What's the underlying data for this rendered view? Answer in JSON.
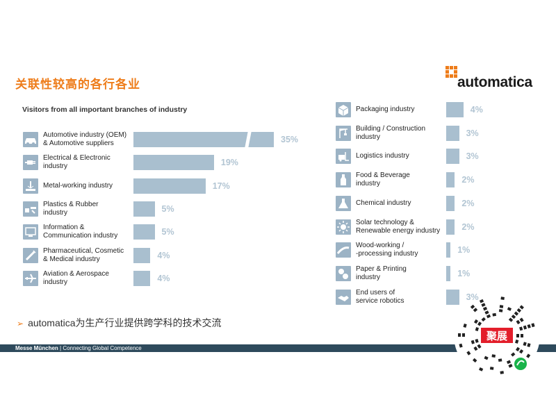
{
  "title": "关联性较高的各行各业",
  "logo_text": "automatica",
  "chart_data": {
    "type": "bar",
    "subtitle": "Visitors from all important branches of industry",
    "unit": "%",
    "left_panel": [
      {
        "label": "Automotive industry (OEM)\n& Automotive suppliers",
        "value": 35,
        "display": "35%",
        "icon": "car-icon"
      },
      {
        "label": "Electrical & Electronic\nindustry",
        "value": 19,
        "display": "19%",
        "icon": "plug-icon"
      },
      {
        "label": "Metal-working industry",
        "value": 17,
        "display": "17%",
        "icon": "metalwork-icon"
      },
      {
        "label": "Plastics & Rubber\nindustry",
        "value": 5,
        "display": "5%",
        "icon": "plastics-icon"
      },
      {
        "label": "Information &\nCommunication industry",
        "value": 5,
        "display": "5%",
        "icon": "computer-icon"
      },
      {
        "label": "Pharmaceutical, Cosmetic\n& Medical industry",
        "value": 4,
        "display": "4%",
        "icon": "syringe-icon"
      },
      {
        "label": "Aviation & Aerospace\nindustry",
        "value": 4,
        "display": "4%",
        "icon": "airplane-icon"
      }
    ],
    "right_panel": [
      {
        "label": "Packaging industry",
        "value": 4,
        "display": "4%",
        "icon": "package-icon"
      },
      {
        "label": "Building / Construction\nindustry",
        "value": 3,
        "display": "3%",
        "icon": "crane-icon"
      },
      {
        "label": "Logistics industry",
        "value": 3,
        "display": "3%",
        "icon": "forklift-icon"
      },
      {
        "label": "Food & Beverage\nindustry",
        "value": 2,
        "display": "2%",
        "icon": "bottle-icon"
      },
      {
        "label": "Chemical industry",
        "value": 2,
        "display": "2%",
        "icon": "flask-icon"
      },
      {
        "label": "Solar technology &\nRenewable energy industry",
        "value": 2,
        "display": "2%",
        "icon": "sun-icon"
      },
      {
        "label": "Wood-working /\n-processing industry",
        "value": 1,
        "display": "1%",
        "icon": "saw-icon"
      },
      {
        "label": "Paper & Printing\nindustry",
        "value": 1,
        "display": "1%",
        "icon": "paper-roll-icon"
      },
      {
        "label": "End users of\nservice robotics",
        "value": 3,
        "display": "3%",
        "icon": "handshake-icon"
      }
    ],
    "axis_break_on": "Automotive industry (OEM)\n& Automotive suppliers"
  },
  "bullet_text": "automatica为生产行业提供跨学科的技术交流",
  "footer": {
    "brand": "Messe München",
    "separator": " | ",
    "tagline": "Connecting Global Competence"
  },
  "qr_text": "聚展",
  "colors": {
    "accent": "#ee7d1b",
    "bar": "#a9bfcf",
    "icon_bg": "#9cb3c5",
    "pct": "#b2c5d3",
    "footer": "#2e4a5c"
  }
}
